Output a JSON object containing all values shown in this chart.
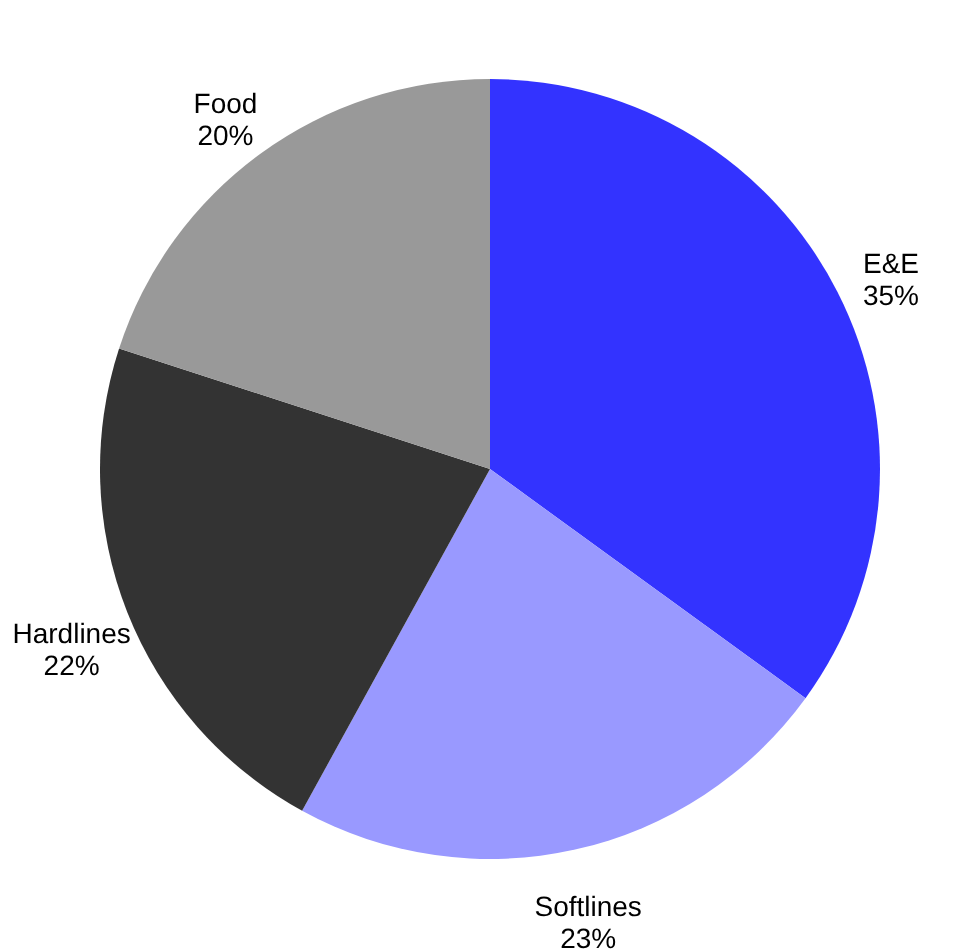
{
  "chart_data": {
    "type": "pie",
    "categories": [
      "E&E",
      "Softlines",
      "Hardlines",
      "Food"
    ],
    "values": [
      35,
      23,
      22,
      20
    ],
    "colors": [
      "#3333ff",
      "#9999ff",
      "#333333",
      "#999999"
    ],
    "value_labels": [
      "35%",
      "23%",
      "22%",
      "20%"
    ],
    "legend": false
  }
}
